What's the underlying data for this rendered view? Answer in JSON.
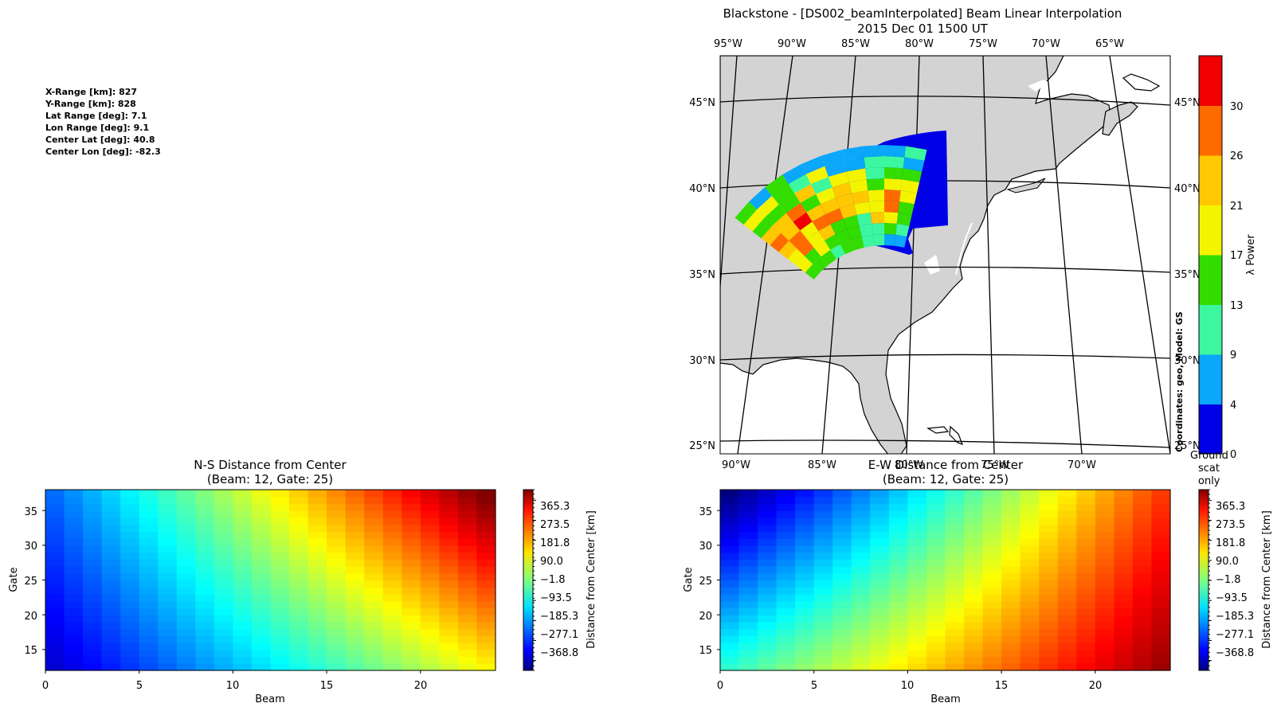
{
  "info_panel": {
    "lines": [
      "X-Range [km]: 827",
      "Y-Range [km]: 828",
      "Lat Range [deg]: 7.1",
      "Lon Range [deg]: 9.1",
      "Center Lat [deg]: 40.8",
      "Center Lon [deg]: -82.3"
    ]
  },
  "map_panel": {
    "title": "Blackstone - [DS002_beamInterpolated] Beam Linear Interpolation",
    "subtitle": "2015 Dec 01 1500 UT",
    "top_lon_labels": [
      "95°W",
      "90°W",
      "85°W",
      "80°W",
      "75°W",
      "70°W",
      "65°W"
    ],
    "bottom_lon_labels": [
      "90°W",
      "85°W",
      "80°W",
      "75°W",
      "70°W"
    ],
    "left_lat_labels": [
      "45°N",
      "40°N",
      "35°N",
      "30°N",
      "25°N"
    ],
    "right_lat_labels": [
      "45°N",
      "40°N",
      "35°N",
      "30°N",
      "25°N"
    ],
    "side_note": "Coordinates: geo, Model: GS",
    "colorbar": {
      "label": "λ Power",
      "ticks": [
        "0",
        "4",
        "9",
        "13",
        "17",
        "21",
        "26",
        "30"
      ],
      "extra_label": [
        "Ground",
        "scat",
        "only"
      ],
      "colors": [
        "#0000e6",
        "#0aa7fa",
        "#3cf7a0",
        "#33dd00",
        "#f4f400",
        "#ffc800",
        "#ff6a00",
        "#f00000"
      ]
    },
    "land_color": "#d3d3d3"
  },
  "chart_data": [
    {
      "type": "heatmap",
      "title": "N-S Distance from Center",
      "subtitle": "(Beam: 12, Gate: 25)",
      "xlabel": "Beam",
      "ylabel": "Gate",
      "xlim": [
        0,
        24
      ],
      "ylim": [
        12,
        38
      ],
      "xticks": [
        "0",
        "5",
        "10",
        "15",
        "20"
      ],
      "yticks": [
        "15",
        "20",
        "25",
        "30",
        "35"
      ],
      "colorbar_label": "Distance from Center [km]",
      "colorbar_ticks": [
        "365.3",
        "273.5",
        "181.8",
        "90.0",
        "−1.8",
        "−93.5",
        "−185.3",
        "−277.1",
        "−368.8"
      ],
      "value_range": [
        -414,
        414
      ],
      "colormap": "jet"
    },
    {
      "type": "heatmap",
      "title": "E-W Distance from Center",
      "subtitle": "(Beam: 12, Gate: 25)",
      "xlabel": "Beam",
      "ylabel": "Gate",
      "xlim": [
        0,
        24
      ],
      "ylim": [
        12,
        38
      ],
      "xticks": [
        "0",
        "5",
        "10",
        "15",
        "20"
      ],
      "yticks": [
        "15",
        "20",
        "25",
        "30",
        "35"
      ],
      "colorbar_label": "Distance from Center [km]",
      "colorbar_ticks": [
        "365.3",
        "273.5",
        "181.8",
        "90.0",
        "−1.8",
        "−93.5",
        "−185.3",
        "−277.1",
        "−368.8"
      ],
      "value_range": [
        -414,
        414
      ],
      "colormap": "jet"
    }
  ]
}
